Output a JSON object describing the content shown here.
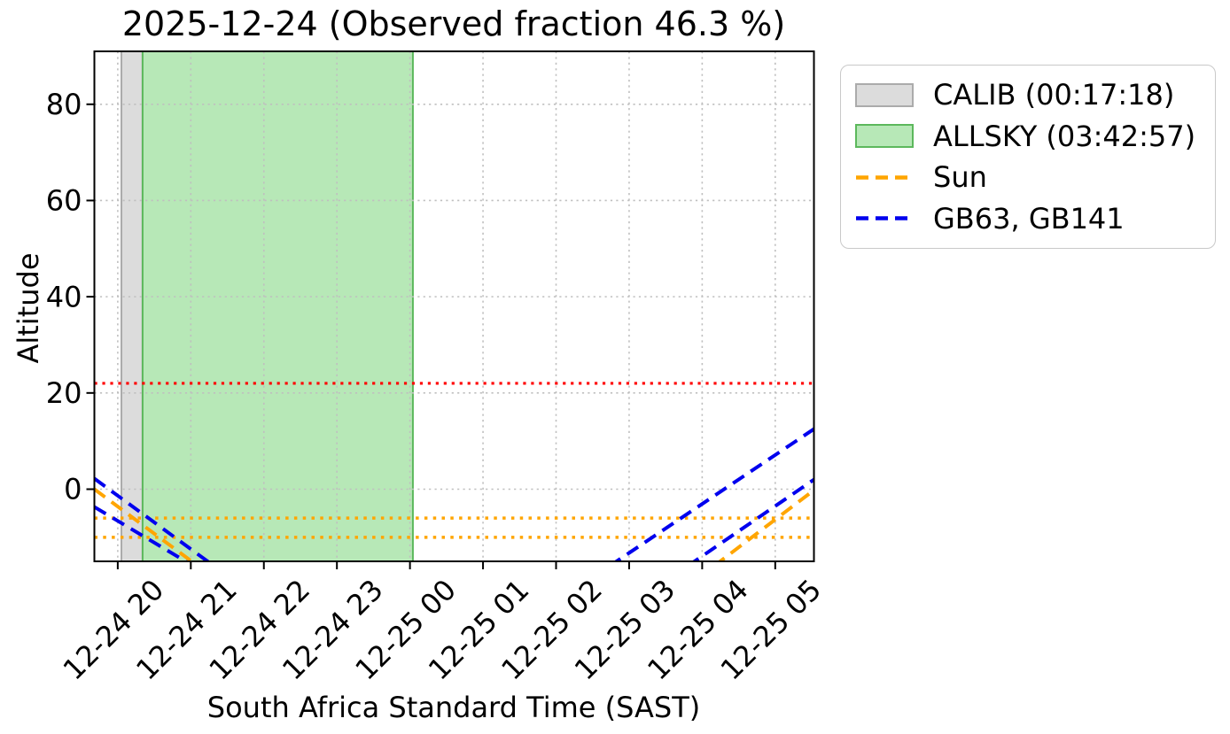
{
  "chart_data": {
    "type": "line",
    "title": "2025-12-24 (Observed fraction 46.3 %)",
    "xlabel": "South Africa Standard Time (SAST)",
    "ylabel": "Altitude",
    "x_axis": {
      "unit": "SAST decimal hours (24+ = after midnight)",
      "start_hour": 19.68,
      "end_hour": 29.53
    },
    "ylim": [
      -15,
      91
    ],
    "yticks": [
      0,
      20,
      40,
      60,
      80
    ],
    "xticks": [
      {
        "hour": 20,
        "label": "12-24 20"
      },
      {
        "hour": 21,
        "label": "12-24 21"
      },
      {
        "hour": 22,
        "label": "12-24 22"
      },
      {
        "hour": 23,
        "label": "12-24 23"
      },
      {
        "hour": 24,
        "label": "12-25 00"
      },
      {
        "hour": 25,
        "label": "12-25 01"
      },
      {
        "hour": 26,
        "label": "12-25 02"
      },
      {
        "hour": 27,
        "label": "12-25 03"
      },
      {
        "hour": 28,
        "label": "12-25 04"
      },
      {
        "hour": 29,
        "label": "12-25 05"
      }
    ],
    "grid": true,
    "legend_position": "outside-upper-right",
    "bands": [
      {
        "name": "CALIB",
        "duration": "00:17:18",
        "start_hour": 20.05,
        "end_hour": 20.34,
        "fill": "#dcdcdc",
        "edge": "#ababab"
      },
      {
        "name": "ALLSKY",
        "duration": "03:42:57",
        "start_hour": 20.34,
        "end_hour": 24.04,
        "fill": "#b7e8b7",
        "edge": "#5cb85c"
      }
    ],
    "hlines": [
      {
        "name": "altitude-limit-line",
        "alt": 22,
        "color": "#ff0000",
        "style": "dotted",
        "width": 3.2
      },
      {
        "name": "sun-alt-limit-upper",
        "alt": -6,
        "color": "#ffa500",
        "style": "dotted",
        "width": 3.5
      },
      {
        "name": "sun-alt-limit-lower",
        "alt": -10,
        "color": "#ffa500",
        "style": "dotted",
        "width": 3.5
      }
    ],
    "series": [
      {
        "name": "Sun",
        "color": "#ffa500",
        "style": "dashed",
        "width": 4,
        "segments": [
          [
            [
              19.68,
              0.0
            ],
            [
              21.1,
              -16.0
            ]
          ],
          [
            [
              28.16,
              -16.0
            ],
            [
              29.53,
              -0.2
            ]
          ]
        ]
      },
      {
        "name": "GB63, GB141",
        "color": "#0000ee",
        "style": "dashed",
        "width": 4,
        "segments": [
          [
            [
              19.68,
              2.2
            ],
            [
              21.32,
              -16.0
            ]
          ],
          [
            [
              19.68,
              -3.7
            ],
            [
              21.04,
              -16.0
            ]
          ],
          [
            [
              26.73,
              -16.0
            ],
            [
              29.53,
              12.5
            ]
          ],
          [
            [
              27.8,
              -16.0
            ],
            [
              29.53,
              2.0
            ]
          ]
        ]
      }
    ]
  },
  "legend": {
    "items": [
      {
        "label": "CALIB (00:17:18)",
        "swatch": "patch",
        "fill": "#dcdcdc",
        "edge": "#ababab"
      },
      {
        "label": "ALLSKY (03:42:57)",
        "swatch": "patch",
        "fill": "#b7e8b7",
        "edge": "#5cb85c"
      },
      {
        "label": "Sun",
        "swatch": "line",
        "color": "#ffa500"
      },
      {
        "label": "GB63, GB141",
        "swatch": "line",
        "color": "#0000ee"
      }
    ]
  }
}
